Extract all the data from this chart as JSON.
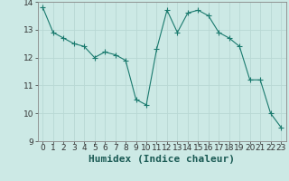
{
  "x": [
    0,
    1,
    2,
    3,
    4,
    5,
    6,
    7,
    8,
    9,
    10,
    11,
    12,
    13,
    14,
    15,
    16,
    17,
    18,
    19,
    20,
    21,
    22,
    23
  ],
  "y": [
    13.8,
    12.9,
    12.7,
    12.5,
    12.4,
    12.0,
    12.2,
    12.1,
    11.9,
    10.5,
    10.3,
    12.3,
    13.7,
    12.9,
    13.6,
    13.7,
    13.5,
    12.9,
    12.7,
    12.4,
    11.2,
    11.2,
    10.0,
    9.5
  ],
  "ylim": [
    9,
    14
  ],
  "xlim": [
    -0.5,
    23.5
  ],
  "yticks": [
    9,
    10,
    11,
    12,
    13,
    14
  ],
  "xticks": [
    0,
    1,
    2,
    3,
    4,
    5,
    6,
    7,
    8,
    9,
    10,
    11,
    12,
    13,
    14,
    15,
    16,
    17,
    18,
    19,
    20,
    21,
    22,
    23
  ],
  "xlabel": "Humidex (Indice chaleur)",
  "line_color": "#1a7a6e",
  "marker_color": "#1a7a6e",
  "bg_color": "#cce9e5",
  "grid_color": "#b8d8d4",
  "tick_fontsize": 6.5,
  "xlabel_fontsize": 8,
  "marker_size": 2.0,
  "line_width": 0.8
}
